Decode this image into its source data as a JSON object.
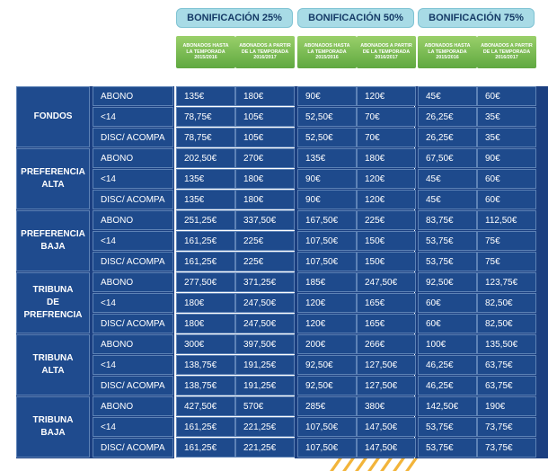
{
  "groups": [
    "BONIFICACIÓN 25%",
    "BONIFICACIÓN 50%",
    "BONIFICACIÓN 75%"
  ],
  "subheaders": [
    [
      "ABONADOS HASTA",
      "LA TEMPORADA",
      "2015/2016"
    ],
    [
      "ABONADOS A PARTIR",
      "DE LA TEMPORADA",
      "2016/2017"
    ]
  ],
  "sections": [
    {
      "title": [
        "FONDOS"
      ],
      "rows": [
        {
          "label": "ABONO",
          "values": [
            "135€",
            "180€",
            "90€",
            "120€",
            "45€",
            "60€"
          ]
        },
        {
          "label": "<14",
          "values": [
            "78,75€",
            "105€",
            "52,50€",
            "70€",
            "26,25€",
            "35€"
          ]
        },
        {
          "label": "DISC/ ACOMPA",
          "values": [
            "78,75€",
            "105€",
            "52,50€",
            "70€",
            "26,25€",
            "35€"
          ]
        }
      ]
    },
    {
      "title": [
        "PREFERENCIA",
        "ALTA"
      ],
      "rows": [
        {
          "label": "ABONO",
          "values": [
            "202,50€",
            "270€",
            "135€",
            "180€",
            "67,50€",
            "90€"
          ]
        },
        {
          "label": "<14",
          "values": [
            "135€",
            "180€",
            "90€",
            "120€",
            "45€",
            "60€"
          ]
        },
        {
          "label": "DISC/ ACOMPA",
          "values": [
            "135€",
            "180€",
            "90€",
            "120€",
            "45€",
            "60€"
          ]
        }
      ]
    },
    {
      "title": [
        "PREFERENCIA",
        "BAJA"
      ],
      "rows": [
        {
          "label": "ABONO",
          "values": [
            "251,25€",
            "337,50€",
            "167,50€",
            "225€",
            "83,75€",
            "112,50€"
          ]
        },
        {
          "label": "<14",
          "values": [
            "161,25€",
            "225€",
            "107,50€",
            "150€",
            "53,75€",
            "75€"
          ]
        },
        {
          "label": "DISC/ ACOMPA",
          "values": [
            "161,25€",
            "225€",
            "107,50€",
            "150€",
            "53,75€",
            "75€"
          ]
        }
      ]
    },
    {
      "title": [
        "TRIBUNA",
        "DE PREFRENCIA"
      ],
      "rows": [
        {
          "label": "ABONO",
          "values": [
            "277,50€",
            "371,25€",
            "185€",
            "247,50€",
            "92,50€",
            "123,75€"
          ]
        },
        {
          "label": "<14",
          "values": [
            "180€",
            "247,50€",
            "120€",
            "165€",
            "60€",
            "82,50€"
          ]
        },
        {
          "label": "DISC/ ACOMPA",
          "values": [
            "180€",
            "247,50€",
            "120€",
            "165€",
            "60€",
            "82,50€"
          ]
        }
      ]
    },
    {
      "title": [
        "TRIBUNA",
        "ALTA"
      ],
      "rows": [
        {
          "label": "ABONO",
          "values": [
            "300€",
            "397,50€",
            "200€",
            "266€",
            "100€",
            "135,50€"
          ]
        },
        {
          "label": "<14",
          "values": [
            "138,75€",
            "191,25€",
            "92,50€",
            "127,50€",
            "46,25€",
            "63,75€"
          ]
        },
        {
          "label": "DISC/ ACOMPA",
          "values": [
            "138,75€",
            "191,25€",
            "92,50€",
            "127,50€",
            "46,25€",
            "63,75€"
          ]
        }
      ]
    },
    {
      "title": [
        "TRIBUNA",
        "BAJA"
      ],
      "rows": [
        {
          "label": "ABONO",
          "values": [
            "427,50€",
            "570€",
            "285€",
            "380€",
            "142,50€",
            "190€"
          ]
        },
        {
          "label": "<14",
          "values": [
            "161,25€",
            "221,25€",
            "107,50€",
            "147,50€",
            "53,75€",
            "73,75€"
          ]
        },
        {
          "label": "DISC/ ACOMPA",
          "values": [
            "161,25€",
            "221,25€",
            "107,50€",
            "147,50€",
            "53,75€",
            "73,75€"
          ]
        }
      ]
    }
  ],
  "colors": {
    "header_light_blue": "#a8dbe6",
    "subheader_green": "#6db34a",
    "panel_navy": "#1b3f80",
    "cell_blue": "#1e4a8c",
    "accent_orange": "#f2b43a"
  }
}
